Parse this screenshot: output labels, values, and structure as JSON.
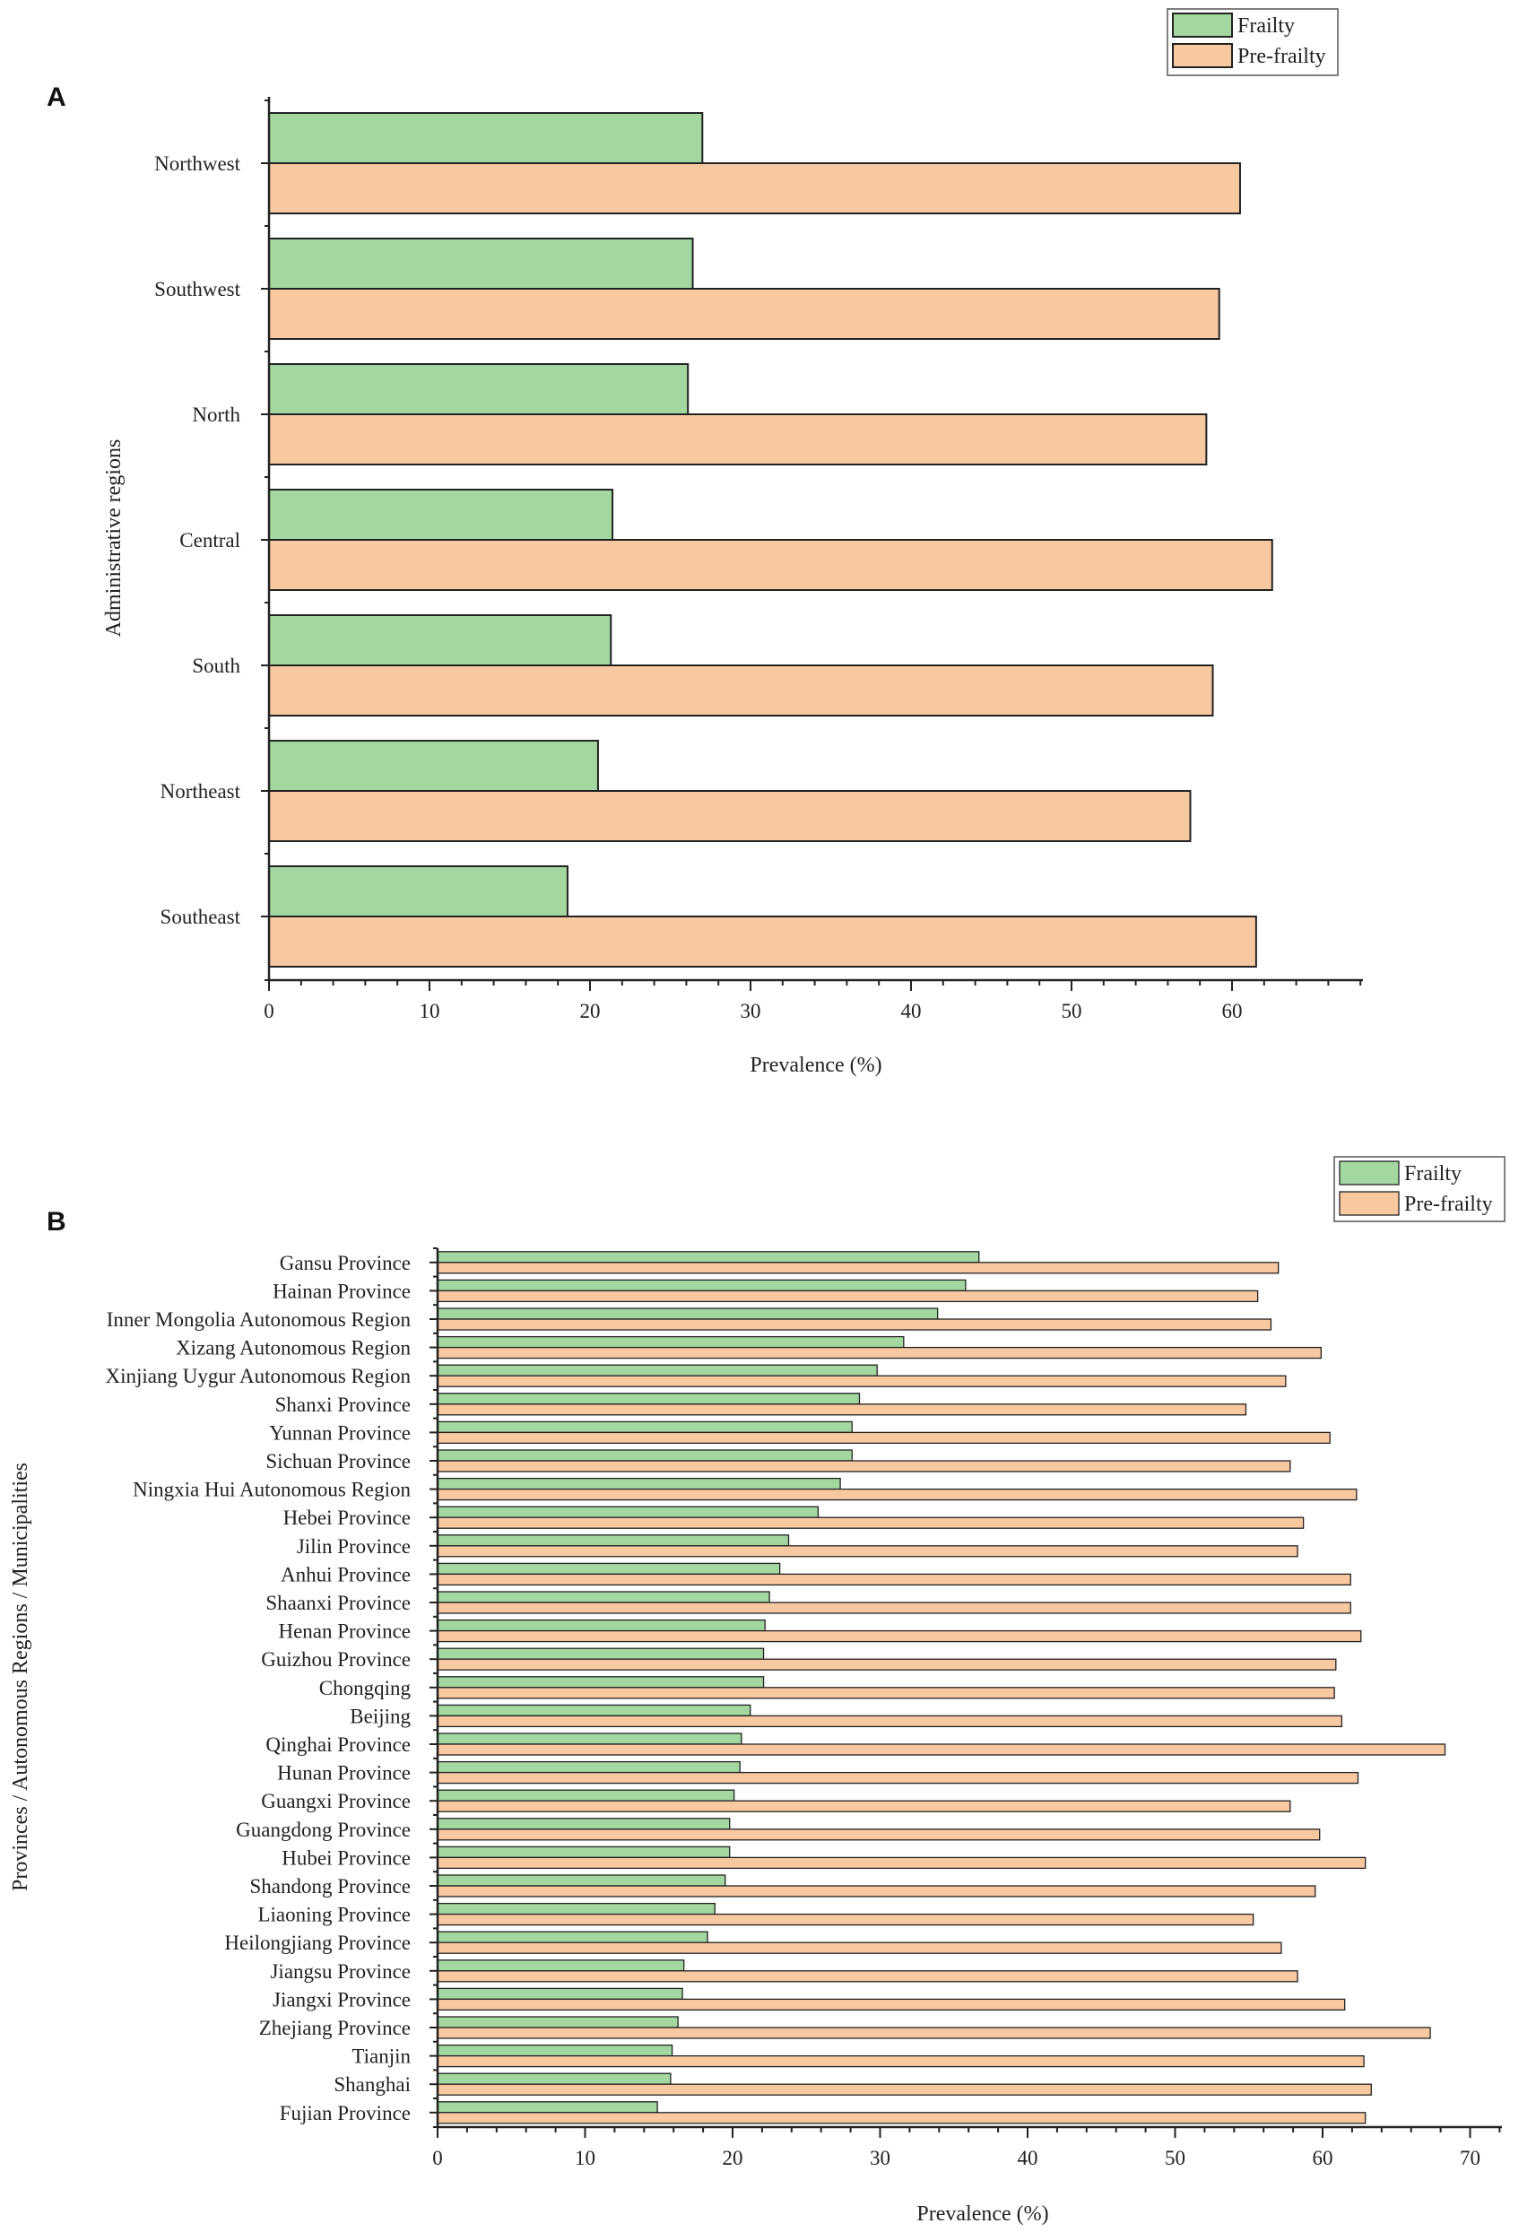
{
  "chart_data": [
    {
      "type": "bar",
      "orientation": "horizontal",
      "panel": "A",
      "xlabel": "Prevalence (%)",
      "ylabel": "Administrative regions",
      "xlim": [
        0,
        68
      ],
      "xticks": [
        0,
        10,
        20,
        30,
        40,
        50,
        60
      ],
      "categories": [
        "Northwest",
        "Southwest",
        "North",
        "Central",
        "South",
        "Northeast",
        "Southeast"
      ],
      "series": [
        {
          "name": "Frailty",
          "color": "#a3d7a0",
          "values": [
            27.0,
            26.4,
            26.1,
            21.4,
            21.3,
            20.5,
            18.6
          ]
        },
        {
          "name": "Pre-frailty",
          "color": "#f8c9a0",
          "values": [
            60.5,
            59.2,
            58.4,
            62.5,
            58.8,
            57.4,
            61.5
          ]
        }
      ],
      "legend": {
        "position": "top-right",
        "entries": [
          "Frailty",
          "Pre-frailty"
        ]
      }
    },
    {
      "type": "bar",
      "orientation": "horizontal",
      "panel": "B",
      "xlabel": "Prevalence (%)",
      "ylabel": "Provinces / Autonomous Regions / Municipalities",
      "xlim": [
        0,
        75
      ],
      "xticks": [
        0,
        10,
        20,
        30,
        40,
        50,
        60,
        70
      ],
      "categories": [
        "Gansu Province",
        "Hainan Province",
        "Inner Mongolia Autonomous Region",
        "Xizang Autonomous Region",
        "Xinjiang Uygur Autonomous Region",
        "Shanxi Province",
        "Yunnan Province",
        "Sichuan Province",
        "Ningxia Hui Autonomous Region",
        "Hebei Province",
        "Jilin Province",
        "Anhui Province",
        "Shaanxi Province",
        "Henan Province",
        "Guizhou Province",
        "Chongqing",
        "Beijing",
        "Qinghai Province",
        "Hunan Province",
        "Guangxi Province",
        "Guangdong Province",
        "Hubei Province",
        "Shandong Province",
        "Liaoning Province",
        "Heilongjiang Province",
        "Jiangsu Province",
        "Jiangxi Province",
        "Zhejiang Province",
        "Tianjin",
        "Shanghai",
        "Fujian Province"
      ],
      "series": [
        {
          "name": "Frailty",
          "color": "#a3d7a0",
          "values": [
            36.7,
            35.8,
            33.9,
            31.6,
            29.8,
            28.6,
            28.1,
            28.1,
            27.3,
            25.8,
            23.8,
            23.2,
            22.5,
            22.2,
            22.1,
            22.1,
            21.2,
            20.6,
            20.5,
            20.1,
            19.8,
            19.8,
            19.5,
            18.8,
            18.3,
            16.7,
            16.6,
            16.3,
            15.9,
            15.8,
            14.9
          ]
        },
        {
          "name": "Pre-frailty",
          "color": "#f8c9a0",
          "values": [
            57.0,
            55.6,
            56.5,
            59.9,
            57.5,
            54.8,
            60.5,
            57.8,
            62.3,
            58.7,
            58.3,
            61.9,
            61.9,
            62.6,
            60.9,
            60.8,
            61.3,
            68.3,
            62.4,
            57.8,
            59.8,
            62.9,
            59.5,
            55.3,
            57.2,
            58.3,
            61.5,
            67.3,
            62.8,
            63.3,
            62.9
          ]
        }
      ],
      "legend": {
        "position": "top-right",
        "entries": [
          "Frailty",
          "Pre-frailty"
        ]
      }
    }
  ],
  "panels": {
    "a_letter": "A",
    "b_letter": "B"
  }
}
